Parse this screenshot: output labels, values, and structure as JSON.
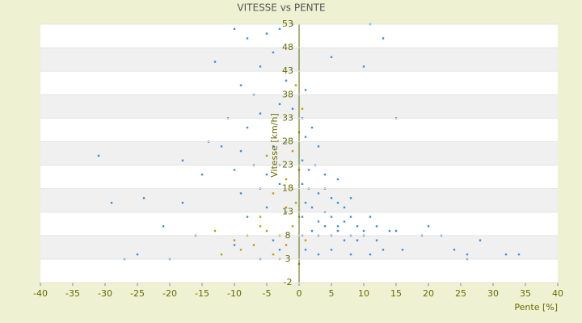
{
  "chart_data": {
    "type": "scatter",
    "title": "VITESSE vs PENTE",
    "xlabel": "Pente [%]",
    "ylabel": "Vitesse [km/h]",
    "xlim": [
      -40,
      40
    ],
    "xticks": [
      -40,
      -35,
      -30,
      -25,
      -20,
      -15,
      -10,
      -5,
      0,
      5,
      10,
      15,
      20,
      25,
      30,
      35,
      40
    ],
    "ylim": [
      -2,
      53
    ],
    "yticks": [
      -2,
      3,
      8,
      13,
      18,
      23,
      28,
      33,
      38,
      43,
      48,
      53
    ],
    "grid": true,
    "series": [
      {
        "color": "#3a8fd8",
        "x": [
          -10,
          -8,
          -5,
          -3,
          -1,
          11,
          13,
          5,
          -13,
          -6,
          -4,
          10,
          -9,
          -7,
          -2,
          1,
          -11,
          -8,
          -6,
          -3,
          -1,
          0.5,
          2,
          15,
          -14,
          -12,
          -9,
          -4,
          -2,
          1,
          3,
          -31,
          -18,
          -15,
          -10,
          -7,
          -5,
          -3,
          0.5,
          1.5,
          2.5,
          4,
          6,
          -29,
          -24,
          -18,
          -9,
          -6,
          -3,
          0.5,
          1.5,
          3,
          4,
          5,
          6,
          7,
          8,
          -21,
          -8,
          -5,
          -2,
          0.5,
          1,
          2,
          3,
          4,
          5,
          6,
          7,
          8,
          9,
          10,
          11,
          12,
          14,
          -16,
          -10,
          -4,
          0.5,
          2,
          3,
          4,
          5,
          6,
          7,
          8,
          9,
          10,
          12,
          15,
          19,
          20,
          22,
          24,
          26,
          28,
          32,
          34,
          -27,
          -25,
          -20,
          -6,
          -3,
          1,
          3,
          5,
          8,
          11,
          13,
          16,
          26
        ],
        "values": [
          52,
          50,
          51,
          52,
          53,
          53,
          50,
          46,
          45,
          44,
          47,
          44,
          40,
          38,
          41,
          39,
          33,
          31,
          34,
          36,
          35,
          33,
          31,
          33,
          28,
          27,
          26,
          27,
          28,
          29,
          27,
          25,
          24,
          21,
          22,
          23,
          21,
          23,
          24,
          22,
          23,
          21,
          20,
          15,
          16,
          15,
          17,
          18,
          19,
          19,
          18,
          17,
          18,
          16,
          15,
          14,
          16,
          10,
          12,
          14,
          13,
          12,
          15,
          14,
          11,
          13,
          12,
          10,
          11,
          12,
          10,
          9,
          12,
          10,
          9,
          8,
          6,
          7,
          8,
          9,
          8,
          10,
          8,
          9,
          7,
          8,
          7,
          8,
          7,
          9,
          8,
          10,
          8,
          5,
          4,
          7,
          4,
          4,
          3,
          4,
          3,
          3,
          5,
          5,
          4,
          5,
          4,
          4,
          5,
          5,
          3
        ]
      },
      {
        "color": "#b8a000",
        "x": [
          -12,
          -10,
          -8,
          -7,
          -6,
          -5,
          -4,
          -3,
          -2,
          -1,
          0,
          -0.5,
          -1,
          -2,
          0,
          -1,
          0,
          0.5,
          -0.5,
          -6,
          -9,
          -13,
          -4,
          -3,
          0,
          1,
          -2,
          -5
        ],
        "values": [
          4,
          7,
          8,
          6,
          10,
          9,
          4,
          8,
          6,
          10,
          12,
          15,
          18,
          20,
          22,
          26,
          30,
          35,
          40,
          12,
          5,
          9,
          17,
          3,
          2,
          7,
          14,
          25
        ]
      }
    ]
  }
}
